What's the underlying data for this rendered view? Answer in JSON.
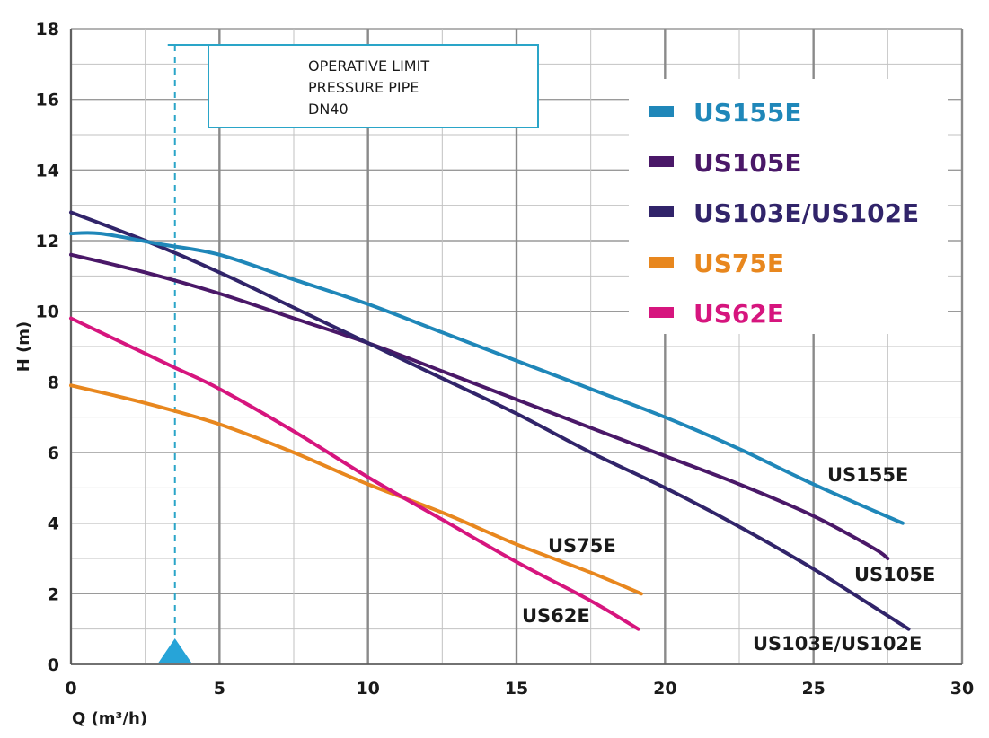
{
  "chart_data": {
    "type": "line",
    "title": "",
    "xlabel": "Q (m³/h)",
    "ylabel": "H (m)",
    "xlim": [
      0,
      30
    ],
    "ylim": [
      0,
      18
    ],
    "x_ticks": [
      "0",
      "5",
      "10",
      "15",
      "20",
      "25",
      "30"
    ],
    "y_ticks": [
      "0",
      "2",
      "4",
      "6",
      "8",
      "10",
      "12",
      "14",
      "16",
      "18"
    ],
    "grid": true,
    "legend_position": "top-right",
    "series": [
      {
        "name": "US155E",
        "color": "#1f87b9",
        "label": "US155E",
        "points": [
          [
            0,
            12.2
          ],
          [
            1,
            12.2
          ],
          [
            3,
            11.9
          ],
          [
            5,
            11.6
          ],
          [
            7.5,
            10.9
          ],
          [
            10,
            10.2
          ],
          [
            12.5,
            9.4
          ],
          [
            15,
            8.6
          ],
          [
            17.5,
            7.8
          ],
          [
            20,
            7.0
          ],
          [
            22.5,
            6.1
          ],
          [
            25,
            5.1
          ],
          [
            28,
            4.0
          ]
        ]
      },
      {
        "name": "US105E",
        "color": "#4a1868",
        "label": "US105E",
        "points": [
          [
            0,
            11.6
          ],
          [
            2.5,
            11.1
          ],
          [
            5,
            10.5
          ],
          [
            7.5,
            9.8
          ],
          [
            10,
            9.1
          ],
          [
            12.5,
            8.3
          ],
          [
            15,
            7.5
          ],
          [
            17.5,
            6.7
          ],
          [
            20,
            5.9
          ],
          [
            22.5,
            5.1
          ],
          [
            25,
            4.2
          ],
          [
            27,
            3.3
          ],
          [
            27.5,
            3.0
          ]
        ]
      },
      {
        "name": "US103E/US102E",
        "color": "#31246a",
        "label": "US103E/US102E",
        "points": [
          [
            0,
            12.8
          ],
          [
            2.5,
            12.0
          ],
          [
            5,
            11.1
          ],
          [
            7.5,
            10.1
          ],
          [
            10,
            9.1
          ],
          [
            12.5,
            8.1
          ],
          [
            15,
            7.1
          ],
          [
            17.5,
            6.0
          ],
          [
            20,
            5.0
          ],
          [
            22.5,
            3.9
          ],
          [
            25,
            2.7
          ],
          [
            28.2,
            1.0
          ]
        ]
      },
      {
        "name": "US75E",
        "color": "#e8871e",
        "label": "US75E",
        "points": [
          [
            0,
            7.9
          ],
          [
            2.5,
            7.4
          ],
          [
            5,
            6.8
          ],
          [
            7.5,
            6.0
          ],
          [
            10,
            5.1
          ],
          [
            12.5,
            4.3
          ],
          [
            15,
            3.4
          ],
          [
            17.5,
            2.6
          ],
          [
            19.2,
            2.0
          ]
        ]
      },
      {
        "name": "US62E",
        "color": "#d6157e",
        "label": "US62E",
        "points": [
          [
            0,
            9.8
          ],
          [
            1.5,
            9.2
          ],
          [
            3.5,
            8.4
          ],
          [
            5,
            7.8
          ],
          [
            7.5,
            6.6
          ],
          [
            10,
            5.3
          ],
          [
            12.5,
            4.1
          ],
          [
            15,
            2.9
          ],
          [
            17.5,
            1.8
          ],
          [
            19.1,
            1.0
          ]
        ]
      }
    ],
    "annotations": {
      "operative_limit": {
        "x": 3.5,
        "lines": [
          "OPERATIVE LIMIT",
          "PRESSURE PIPE",
          "DN40"
        ],
        "color": "#2aa5c8"
      }
    }
  }
}
